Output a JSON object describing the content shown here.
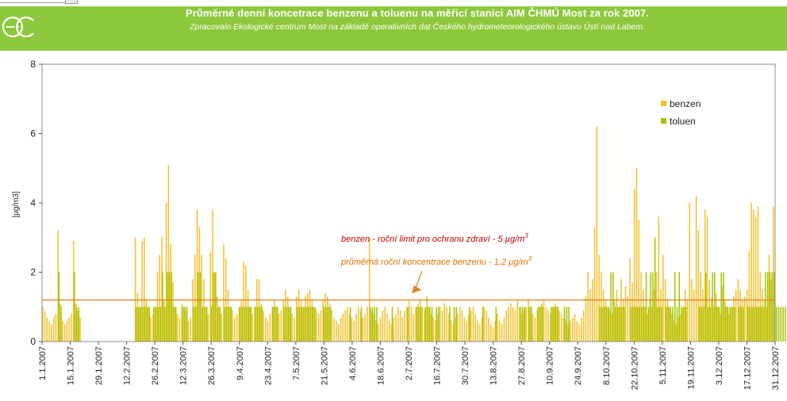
{
  "header": {
    "title": "Průměrné denní koncetrace benzenu a toluenu na měřicí stanici AIM ČHMÚ Most za rok 2007.",
    "subtitle": "Zpracovalo Ekologické centrum Most na základě operativních dat Českého hydrometeorologického ústavu Ústí nad Labem."
  },
  "colors": {
    "banner": "#8cc83c",
    "benzen": "#f2c12e",
    "toluen": "#a6c400",
    "limit_line": "#c0392b",
    "mean_line": "#e0801e",
    "limit_text": "#c00000",
    "mean_text": "#e07000"
  },
  "chart_data": {
    "type": "bar",
    "ylabel": "[µg/m3]",
    "ylim": [
      0,
      8
    ],
    "y_ticks": [
      "0",
      "2",
      "4",
      "6",
      "8"
    ],
    "x_ticks": [
      "1.1.2007",
      "15.1.2007",
      "29.1.2007",
      "12.2.2007",
      "26.2.2007",
      "12.3.2007",
      "26.3.2007",
      "9.4.2007",
      "23.4.2007",
      "7.5.2007",
      "21.5.2007",
      "4.6.2007",
      "18.6.2007",
      "2.7.2007",
      "16.7.2007",
      "30.7.2007",
      "13.8.2007",
      "27.8.2007",
      "10.9.2007",
      "24.9.2007",
      "8.10.2007",
      "22.10.2007",
      "5.11.2007",
      "19.11.2007",
      "3.12.2007",
      "17.12.2007",
      "31.12.2007"
    ],
    "legend": [
      {
        "name": "benzen"
      },
      {
        "name": "toluen"
      }
    ],
    "legend_position": "top-right",
    "grid": false,
    "reference_lines": [
      {
        "value": 5,
        "label": "benzen - roční limit pro ochranu zdraví - 5 µg/m",
        "sup": "3"
      },
      {
        "value": 1.2,
        "label": "průměrná roční koncentrace benzenu - 1,2 µg/m",
        "sup": "3"
      }
    ],
    "series": [
      {
        "name": "benzen",
        "values": [
          1.0,
          0.9,
          0.7,
          0.6,
          0.5,
          0.7,
          0.8,
          3.2,
          1.1,
          0.6,
          0.5,
          0.6,
          0.7,
          0.8,
          2.9,
          1.1,
          0.9,
          0.7,
          null,
          null,
          null,
          null,
          null,
          null,
          null,
          null,
          null,
          null,
          null,
          null,
          null,
          null,
          null,
          null,
          null,
          null,
          null,
          null,
          null,
          null,
          null,
          null,
          3.0,
          1.4,
          1.0,
          2.9,
          3.0,
          1.2,
          1.0,
          0.7,
          0.8,
          1.0,
          2.0,
          2.5,
          3.0,
          1.2,
          4.0,
          5.1,
          2.8,
          1.7,
          1.0,
          0.8,
          0.7,
          1.1,
          1.0,
          0.9,
          0.6,
          0.7,
          1.8,
          2.5,
          3.8,
          3.3,
          2.5,
          1.8,
          1.0,
          0.8,
          2.6,
          3.8,
          2.0,
          1.3,
          1.0,
          0.8,
          2.8,
          2.4,
          1.5,
          1.0,
          0.9,
          0.7,
          0.8,
          1.0,
          1.2,
          2.3,
          2.2,
          1.5,
          1.0,
          0.8,
          1.0,
          1.8,
          1.8,
          1.1,
          0.9,
          0.7,
          0.6,
          0.8,
          1.0,
          1.2,
          1.0,
          0.8,
          0.9,
          1.2,
          1.5,
          1.3,
          1.0,
          0.8,
          0.7,
          1.3,
          1.5,
          1.2,
          1.0,
          1.3,
          1.4,
          1.5,
          1.2,
          1.0,
          0.9,
          0.8,
          0.9,
          1.2,
          1.4,
          1.3,
          1.1,
          0.9,
          0.7,
          0.6,
          0.5,
          0.7,
          0.8,
          0.9,
          1.0,
          0.8,
          0.7,
          0.6,
          0.8,
          1.0,
          0.9,
          0.7,
          0.8,
          1.0,
          3.0,
          0.9,
          0.8,
          0.6,
          0.5,
          0.7,
          0.9,
          1.0,
          0.8,
          0.6,
          0.5,
          0.7,
          0.8,
          1.0,
          0.9,
          0.7,
          0.9,
          1.0,
          1.2,
          1.0,
          0.8,
          1.0,
          1.1,
          1.2,
          1.0,
          0.9,
          1.3,
          1.0,
          0.8,
          0.7,
          0.6,
          0.8,
          1.0,
          0.9,
          1.1,
          1.0,
          0.8,
          0.6,
          0.5,
          0.7,
          0.8,
          1.0,
          0.9,
          0.7,
          0.6,
          0.8,
          0.9,
          1.0,
          0.8,
          0.6,
          0.5,
          0.7,
          1.0,
          0.9,
          0.7,
          0.5,
          0.4,
          0.6,
          0.8,
          0.6,
          0.5,
          0.7,
          0.9,
          1.0,
          1.1,
          1.0,
          0.9,
          1.2,
          1.0,
          0.8,
          0.9,
          1.0,
          1.2,
          1.0,
          0.8,
          0.7,
          0.9,
          1.0,
          1.1,
          1.2,
          1.0,
          0.9,
          0.8,
          1.0,
          1.1,
          1.0,
          0.9,
          0.8,
          0.7,
          0.6,
          0.5,
          0.6,
          0.7,
          0.8,
          0.6,
          0.5,
          0.7,
          0.9,
          1.3,
          2.0,
          1.5,
          1.8,
          3.3,
          6.2,
          2.5,
          2.0,
          1.5,
          1.2,
          1.0,
          0.9,
          0.8,
          1.2,
          1.5,
          1.0,
          1.8,
          1.2,
          1.6,
          1.3,
          2.4,
          1.7,
          4.4,
          5.0,
          3.5,
          2.0,
          1.5,
          1.0,
          0.8,
          1.2,
          1.0,
          1.5,
          2.0,
          3.6,
          1.5,
          2.5,
          1.8,
          1.2,
          1.0,
          0.8,
          0.6,
          0.5,
          0.7,
          0.8,
          1.0,
          1.5,
          1.2,
          4.0,
          1.8,
          1.5,
          4.2,
          3.2,
          2.0,
          1.5,
          3.8,
          3.6,
          1.8,
          1.2,
          1.0,
          1.4,
          1.0,
          0.8,
          1.6,
          1.2,
          1.0,
          0.8,
          1.0,
          1.3,
          1.5,
          1.8,
          1.5,
          1.2,
          1.3,
          1.5,
          2.6,
          4.0,
          3.8,
          3.6,
          3.9,
          2.0,
          1.5,
          1.2,
          1.0,
          2.5,
          1.8,
          3.9
        ]
      },
      {
        "name": "toluen",
        "values": [
          null,
          null,
          null,
          null,
          null,
          null,
          null,
          2.0,
          1.0,
          null,
          null,
          null,
          null,
          null,
          2.0,
          1.0,
          1.0,
          null,
          null,
          null,
          null,
          null,
          null,
          null,
          null,
          null,
          null,
          null,
          null,
          null,
          null,
          null,
          null,
          null,
          null,
          null,
          null,
          null,
          null,
          null,
          null,
          null,
          1.0,
          1.0,
          1.0,
          1.0,
          1.0,
          1.0,
          1.0,
          null,
          1.0,
          1.0,
          1.0,
          1.0,
          2.0,
          1.0,
          2.0,
          2.0,
          2.0,
          1.0,
          1.0,
          null,
          null,
          1.0,
          1.0,
          1.0,
          null,
          null,
          1.0,
          1.0,
          2.0,
          2.0,
          1.0,
          1.0,
          1.0,
          null,
          1.0,
          2.0,
          2.0,
          1.0,
          1.0,
          null,
          1.0,
          1.0,
          1.0,
          1.0,
          null,
          null,
          null,
          1.0,
          1.0,
          1.0,
          1.0,
          1.0,
          1.0,
          null,
          1.0,
          1.0,
          1.0,
          1.0,
          null,
          null,
          null,
          null,
          1.0,
          1.0,
          1.0,
          null,
          null,
          1.0,
          1.0,
          1.0,
          1.0,
          null,
          null,
          1.0,
          1.0,
          1.0,
          1.0,
          1.0,
          1.0,
          1.0,
          1.0,
          1.0,
          null,
          null,
          null,
          1.0,
          1.0,
          1.0,
          1.0,
          null,
          null,
          null,
          null,
          null,
          null,
          null,
          null,
          1.0,
          null,
          null,
          null,
          null,
          1.0,
          null,
          null,
          null,
          1.0,
          1.0,
          1.0,
          1.0,
          null,
          null,
          null,
          null,
          null,
          null,
          1.0,
          null,
          null,
          null,
          null,
          null,
          null,
          1.0,
          null,
          null,
          null,
          1.0,
          1.0,
          1.0,
          null,
          1.0,
          1.0,
          1.0,
          1.0,
          null,
          1.0,
          1.0,
          null,
          null,
          null,
          null,
          1.0,
          null,
          1.0,
          1.0,
          null,
          null,
          null,
          null,
          null,
          1.0,
          null,
          null,
          null,
          null,
          null,
          1.0,
          null,
          null,
          null,
          null,
          null,
          1.0,
          null,
          null,
          null,
          null,
          null,
          null,
          null,
          null,
          null,
          null,
          1.0,
          1.0,
          1.0,
          null,
          1.0,
          1.0,
          null,
          null,
          1.0,
          1.0,
          1.0,
          null,
          null,
          null,
          1.0,
          1.0,
          1.0,
          1.0,
          null,
          null,
          1.0,
          1.0,
          1.0,
          null,
          null,
          null,
          null,
          null,
          null,
          null,
          null,
          null,
          null,
          null,
          null,
          null,
          1.0,
          1.0,
          1.0,
          1.0,
          1.0,
          2.0,
          2.0,
          1.0,
          1.0,
          1.0,
          1.0,
          1.0,
          null,
          null,
          1.0,
          1.0,
          1.0,
          1.0,
          1.0,
          1.0,
          1.0,
          2.0,
          1.0,
          2.0,
          2.0,
          3.0,
          1.0,
          1.0,
          1.0,
          null,
          1.0,
          1.0,
          1.0,
          1.0,
          2.0,
          1.0,
          2.0,
          1.0,
          1.0,
          1.0,
          null,
          null,
          null,
          null,
          null,
          1.0,
          1.0,
          1.0,
          2.0,
          1.0,
          1.0,
          2.0,
          2.0,
          1.0,
          1.0,
          2.0,
          2.0,
          1.0,
          1.0,
          1.0,
          1.0,
          1.0,
          null,
          1.0,
          1.0,
          1.0,
          null,
          1.0,
          1.0,
          1.0,
          1.0,
          1.0,
          1.0,
          1.0,
          1.0,
          2.0,
          2.0,
          2.0,
          2.0,
          2.0,
          1.0,
          1.0,
          1.0,
          1.0,
          1.0,
          1.0,
          1.0
        ]
      }
    ]
  }
}
